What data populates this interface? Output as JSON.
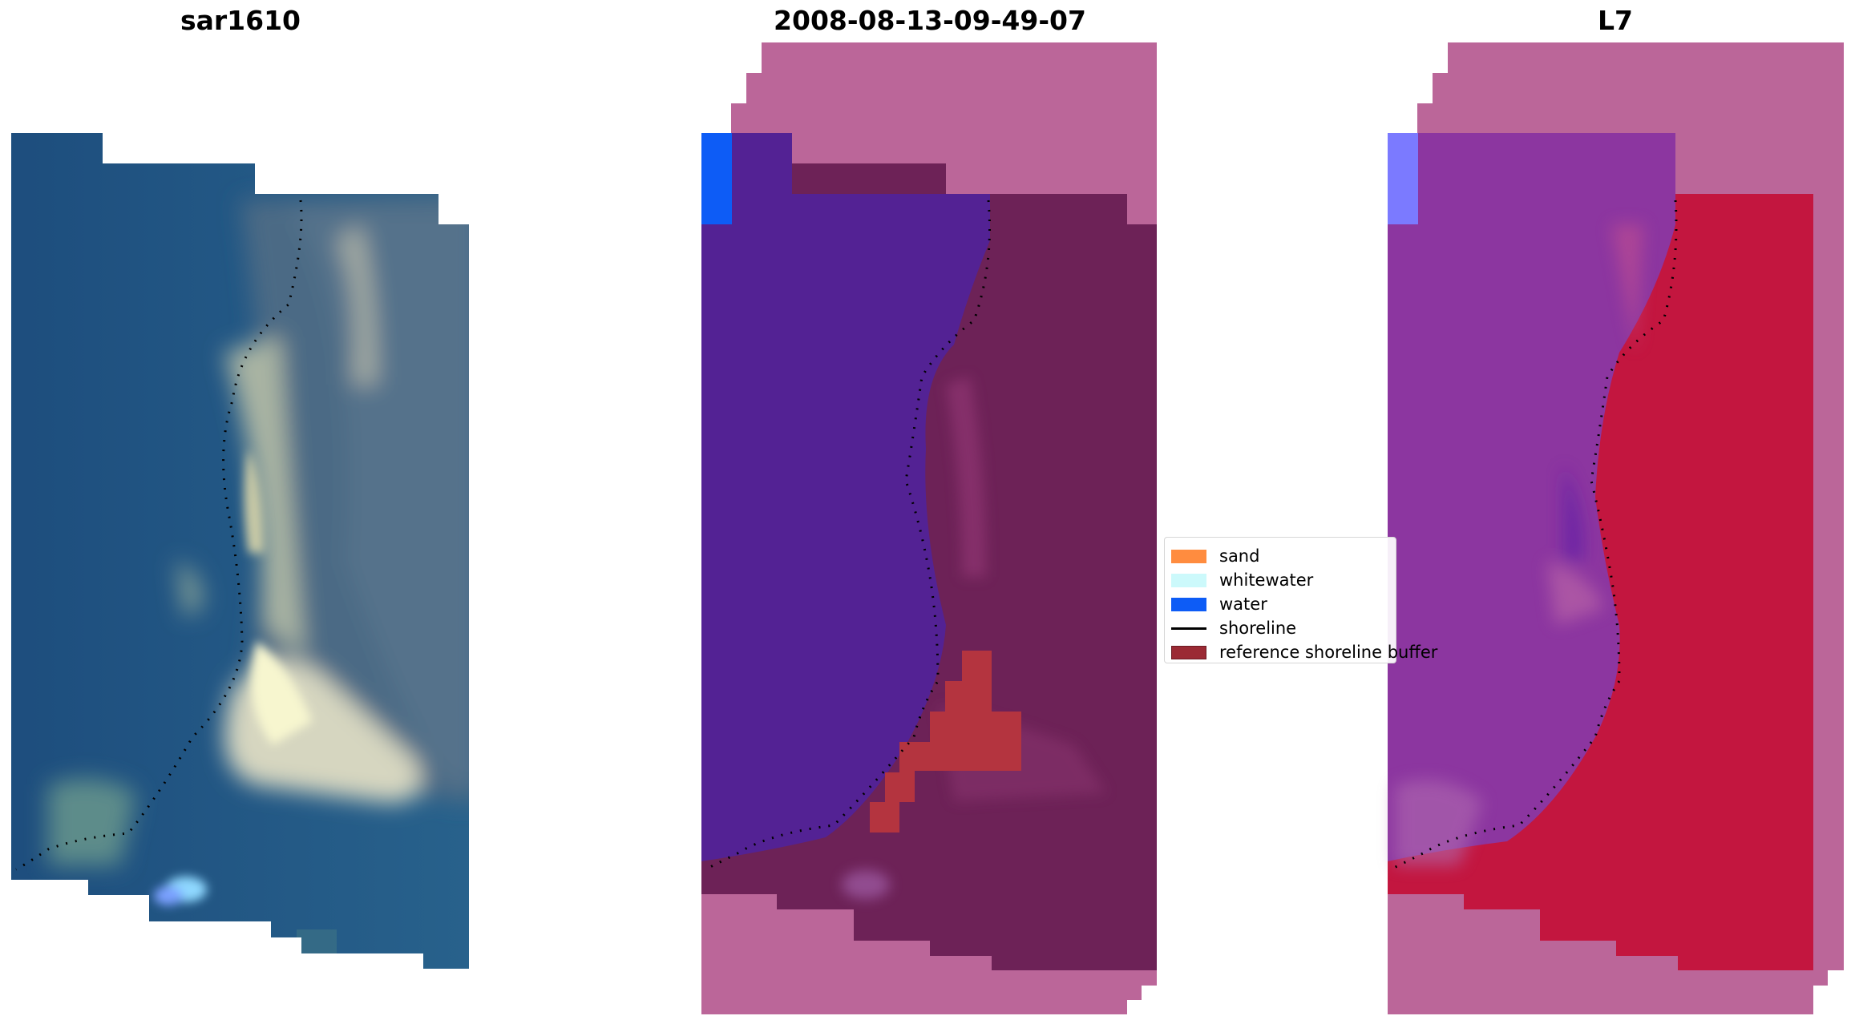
{
  "panels": [
    {
      "title": "sar1610",
      "kind": "rgb"
    },
    {
      "title": "2008-08-13-09-49-07",
      "kind": "classified"
    },
    {
      "title": "L7",
      "kind": "probability"
    }
  ],
  "legend": [
    {
      "label": "sand",
      "color": "#ff8c3f",
      "type": "patch"
    },
    {
      "label": "whitewater",
      "color": "#ccf9fb",
      "type": "patch"
    },
    {
      "label": "water",
      "color": "#0d5cf6",
      "type": "patch"
    },
    {
      "label": "shoreline",
      "color": "#000000",
      "type": "line"
    },
    {
      "label": "reference shoreline buffer",
      "color": "#9b2a34",
      "type": "patch"
    }
  ],
  "colors": {
    "nodata": "#bb6699",
    "classified_water": "#532294",
    "classified_land": "#6d2257",
    "classified_buffer": "#b4343f",
    "prob_water": "#8c36a0",
    "prob_land": "#c3163f",
    "sea": "#1f4d7e",
    "sand_bright": "#f0efc9"
  }
}
